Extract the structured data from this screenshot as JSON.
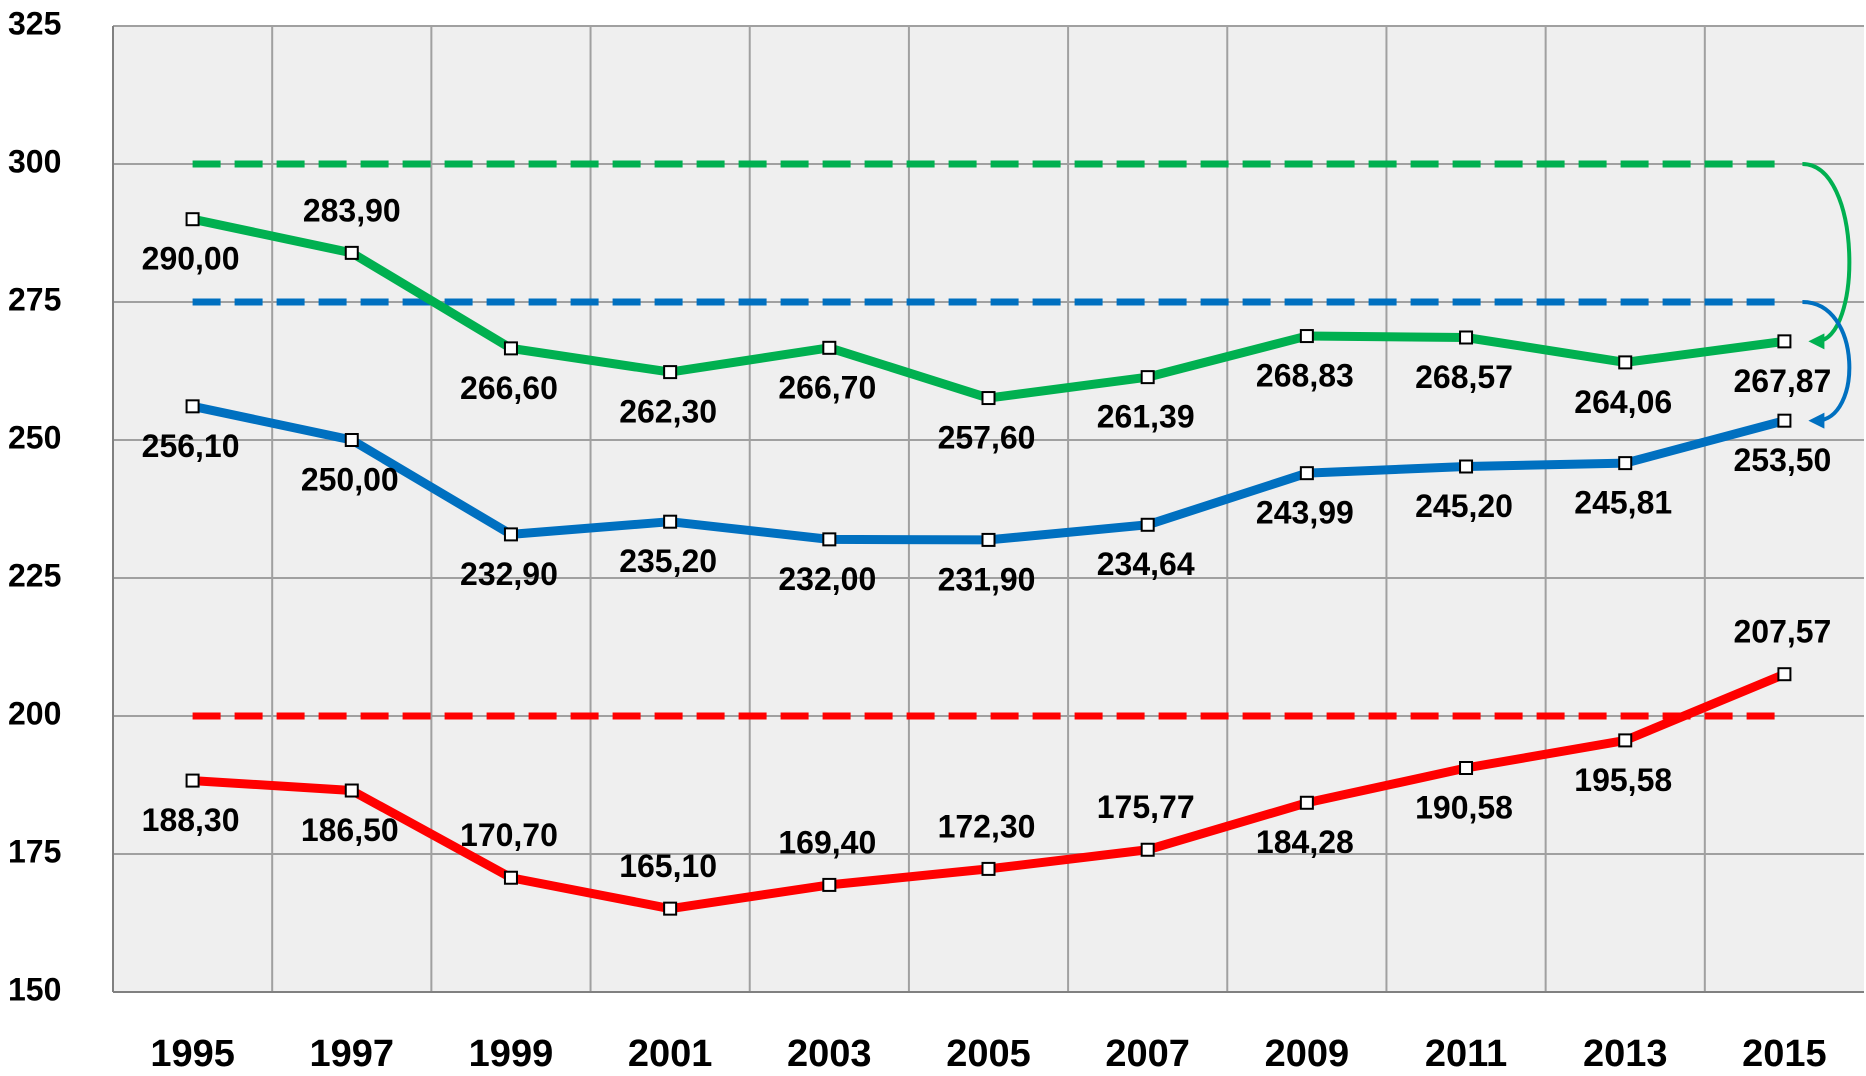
{
  "chart_data": {
    "type": "line",
    "categories": [
      "1995",
      "1997",
      "1999",
      "2001",
      "2003",
      "2005",
      "2007",
      "2009",
      "2011",
      "2013",
      "2015"
    ],
    "series": [
      {
        "color": "#00b050",
        "values": [
          290.0,
          283.9,
          266.6,
          262.3,
          266.7,
          257.6,
          261.39,
          268.83,
          268.57,
          264.06,
          267.87
        ],
        "value_labels": [
          "290,00",
          "283,90",
          "266,60",
          "262,30",
          "266,70",
          "257,60",
          "261,39",
          "268,83",
          "268,57",
          "264,06",
          "267,87"
        ]
      },
      {
        "color": "#0070c0",
        "values": [
          256.1,
          250.0,
          232.9,
          235.2,
          232.0,
          231.9,
          234.64,
          243.99,
          245.2,
          245.81,
          253.5
        ],
        "value_labels": [
          "256,10",
          "250,00",
          "232,90",
          "235,20",
          "232,00",
          "231,90",
          "234,64",
          "243,99",
          "245,20",
          "245,81",
          "253,50"
        ]
      },
      {
        "color": "#ff0000",
        "values": [
          188.3,
          186.5,
          170.7,
          165.1,
          169.4,
          172.3,
          175.77,
          184.28,
          190.58,
          195.58,
          207.57
        ],
        "value_labels": [
          "188,30",
          "186,50",
          "170,70",
          "165,10",
          "169,40",
          "172,30",
          "175,77",
          "184,28",
          "190,58",
          "195,58",
          "207,57"
        ]
      }
    ],
    "reference_lines": [
      {
        "value": 300,
        "color": "#00b050"
      },
      {
        "value": 275,
        "color": "#0070c0"
      },
      {
        "value": 200,
        "color": "#ff0000"
      }
    ],
    "ylim": [
      150,
      325
    ],
    "yticks": [
      150,
      175,
      200,
      225,
      250,
      275,
      300,
      325
    ],
    "grid": true
  }
}
